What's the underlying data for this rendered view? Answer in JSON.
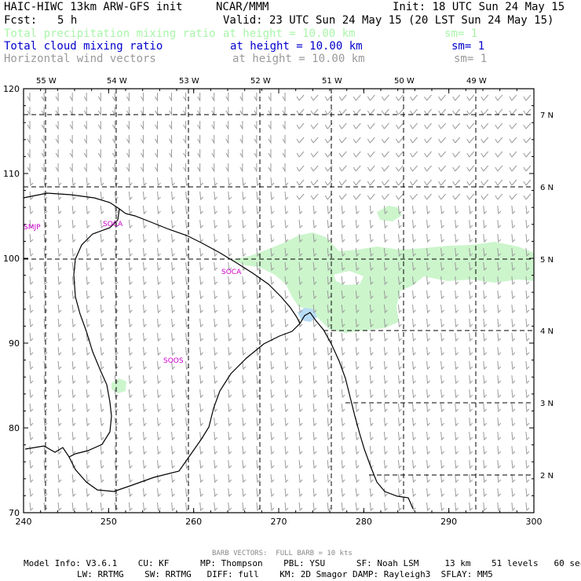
{
  "header": {
    "title_left": "HAIC-HIWC 13km ARW-GFS init",
    "title_center": "NCAR/MMM",
    "init": "Init: 18 UTC Sun 24 May 15",
    "fcst_label": "Fcst:",
    "fcst_value": "5 h",
    "valid": "Valid: 23 UTC Sun 24 May 15 (20 LST Sun 24 May 15)"
  },
  "fields": [
    {
      "name": "Total precipitation mixing ratio",
      "height": "at height = 10.00 km",
      "sm": "sm= 1",
      "color": "#aaf5aa"
    },
    {
      "name": "Total cloud mixing ratio",
      "height": "at height = 10.00 km",
      "sm": "sm= 1",
      "color": "#0000cc"
    },
    {
      "name": "Horizontal wind vectors",
      "height": "at height = 10.00 km",
      "sm": "sm= 1",
      "color": "#9a9a9a"
    }
  ],
  "map": {
    "x_ticks": [
      "240",
      "250",
      "260",
      "270",
      "280",
      "290",
      "300"
    ],
    "y_ticks": [
      "70",
      "80",
      "90",
      "100",
      "110",
      "120"
    ],
    "lon_labels": [
      "55 W",
      "54 W",
      "53 W",
      "52 W",
      "51 W",
      "50 W",
      "49 W"
    ],
    "lat_labels": [
      "7 N",
      "6 N",
      "5 N",
      "4 N",
      "3 N",
      "2 N"
    ],
    "stations": [
      "SMJP",
      "SOCA",
      "SOCA",
      "SOOS"
    ],
    "precip_color": "#ccf5cc",
    "cloud_color": "#b8dcf5",
    "station_color": "#cc00cc"
  },
  "footer": {
    "barb_note": "BARB VECTORS:  FULL BARB = 10 kts",
    "model_line1": "Model Info: V3.6.1    CU: KF      MP: Thompson    PBL: YSU      SF: Noah LSM     13 km    51 levels   60 sec",
    "model_line2": "LW: RRTMG    SW: RRTMG   DIFF: full    KM: 2D Smagor DAMP: Rayleigh3  SFLAY: MM5"
  }
}
